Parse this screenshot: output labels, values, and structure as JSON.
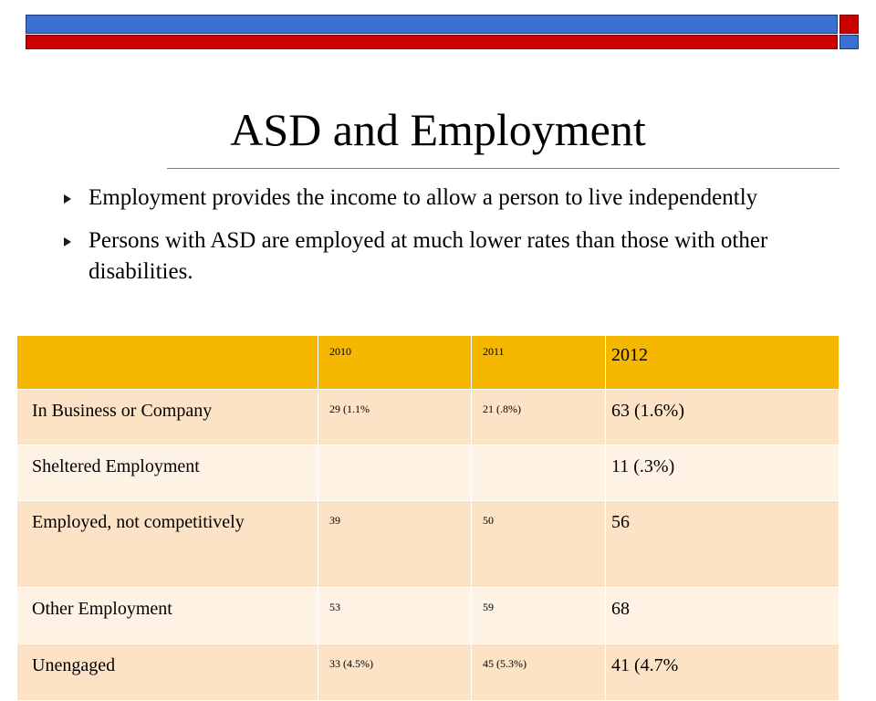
{
  "colors": {
    "top_bar_blue": "#3a71d0",
    "top_bar_red": "#cc0000",
    "header_fill": "#f5b700",
    "row_fill_dark": "#fde3c6",
    "row_fill_light": "#fef2e4"
  },
  "slide": {
    "title": "ASD and Employment",
    "bullets": [
      {
        "icon": "triangle-bullet-icon",
        "text": "Employment provides the income to allow a person to live independently"
      },
      {
        "icon": "triangle-bullet-icon",
        "text": "Persons with ASD are employed at much lower rates than those with other disabilities."
      }
    ]
  },
  "table": {
    "headers": [
      "",
      "2010",
      "2011",
      "2012"
    ],
    "rows": [
      [
        "In Business or Company",
        "29 (1.1%",
        "21 (.8%)",
        "63 (1.6%)"
      ],
      [
        "Sheltered Employment",
        "",
        "",
        "11 (.3%)"
      ],
      [
        "Employed, not competitively",
        "39",
        "50",
        "56"
      ],
      [
        "Other Employment",
        "53",
        "59",
        "68"
      ],
      [
        "Unengaged",
        "33 (4.5%)",
        "45 (5.3%)",
        "41 (4.7%"
      ]
    ]
  }
}
